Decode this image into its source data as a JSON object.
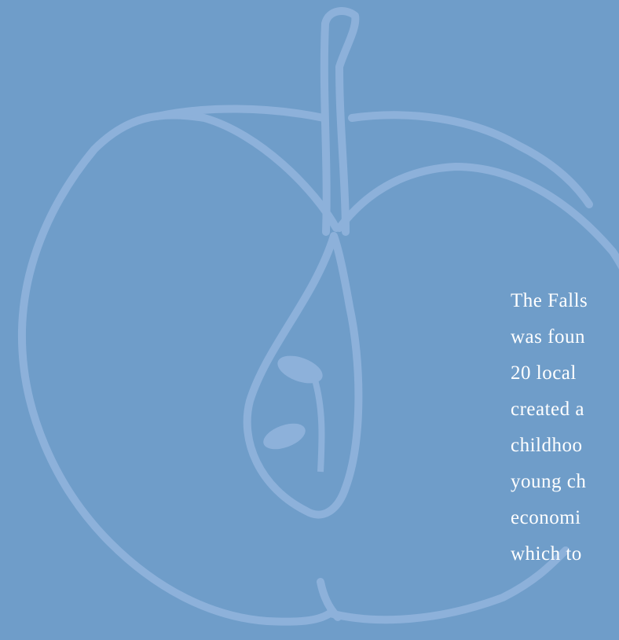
{
  "lines": [
    "The Falls",
    "was foun",
    "20 local",
    "created a",
    "childhoo",
    "young ch",
    "economi",
    "which to"
  ]
}
